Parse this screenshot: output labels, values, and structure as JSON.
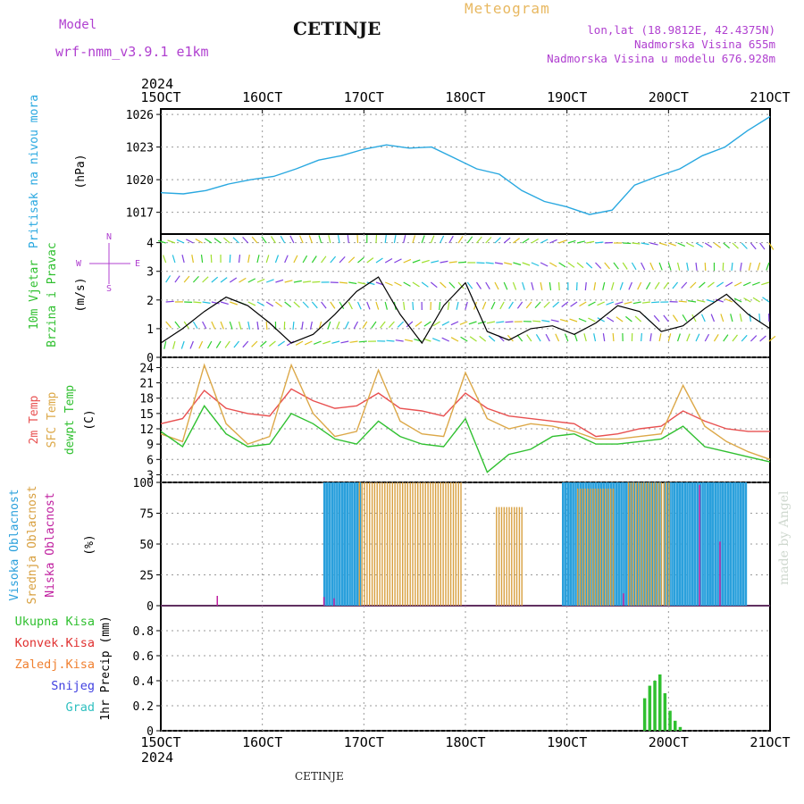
{
  "header": {
    "model_label": "Model",
    "model_name": "wrf-nmm_v3.9.1 e1km",
    "city": "CETINJE",
    "title": "Meteogram",
    "coords": "lon,lat (18.9812E, 42.4375N)",
    "elevation": "Nadmorska Visina 655m",
    "model_elevation": "Nadmorska Visina u modelu 676.928m"
  },
  "footer_city": "CETINJE",
  "credit": "made by Angel",
  "colors": {
    "pressure": "#29a8e0",
    "temp2m": "#e85050",
    "sfc": "#dca848",
    "dewpt": "#30c030",
    "high_cloud": "#2aa0dc",
    "mid_cloud": "#d8a040",
    "low_cloud": "#c020a0",
    "precip_total": "#30c030",
    "precip_conv": "#e03030",
    "precip_frozen": "#f08030",
    "snow": "#4040e0",
    "hail": "#30c0c0"
  },
  "chart_data": {
    "type": "line",
    "time_axis": {
      "year": "2024",
      "tick_labels": [
        "15OCT",
        "16OCT",
        "17OCT",
        "18OCT",
        "19OCT",
        "20OCT",
        "21OCT"
      ]
    },
    "pressure": {
      "ylabel_1": "Pritisak na nivou mora",
      "unit": "(hPa)",
      "ylim": [
        1015,
        1026.5
      ],
      "ticks": [
        1017,
        1020,
        1023,
        1026
      ],
      "values": [
        1018.8,
        1018.7,
        1019.0,
        1019.6,
        1020.0,
        1020.3,
        1021.0,
        1021.8,
        1022.2,
        1022.8,
        1023.2,
        1022.9,
        1023.0,
        1022.0,
        1021.0,
        1020.5,
        1019.0,
        1018.0,
        1017.5,
        1016.8,
        1017.2,
        1019.5,
        1020.3,
        1021.0,
        1022.2,
        1023.0,
        1024.5,
        1025.8
      ]
    },
    "wind": {
      "ylabel_1": "10m Vjetar",
      "ylabel_2": "Brzina i Pravac",
      "unit": "(m/s)",
      "compass": [
        "N",
        "W",
        "E",
        "S"
      ],
      "ylim": [
        0,
        4.3
      ],
      "ticks": [
        0,
        1,
        2,
        3,
        4
      ],
      "values": [
        0.5,
        1.0,
        1.6,
        2.1,
        1.8,
        1.2,
        0.5,
        0.8,
        1.5,
        2.3,
        2.8,
        1.5,
        0.5,
        1.8,
        2.6,
        0.9,
        0.6,
        1.0,
        1.1,
        0.8,
        1.2,
        1.8,
        1.6,
        0.9,
        1.1,
        1.7,
        2.2,
        1.5,
        1.0
      ]
    },
    "temperature": {
      "ylabel_1": "2m Temp",
      "ylabel_2": "SFC Temp",
      "ylabel_3": "dewpt Temp",
      "unit": "(C)",
      "ylim": [
        1.5,
        26
      ],
      "ticks": [
        3,
        6,
        9,
        12,
        15,
        18,
        21,
        24
      ],
      "series": [
        {
          "name": "2m Temp",
          "values": [
            13.0,
            14.0,
            19.5,
            16.0,
            15.0,
            14.5,
            19.8,
            17.5,
            16.0,
            16.5,
            19.0,
            16.0,
            15.5,
            14.5,
            19.0,
            16.0,
            14.5,
            14.0,
            13.5,
            13.0,
            10.5,
            11.0,
            12.0,
            12.5,
            15.5,
            13.5,
            12.0,
            11.5,
            11.5
          ]
        },
        {
          "name": "SFC Temp",
          "values": [
            11.0,
            9.5,
            24.5,
            13.0,
            9.0,
            10.5,
            24.5,
            15.0,
            10.5,
            11.5,
            23.5,
            13.5,
            11.0,
            10.5,
            23.0,
            14.0,
            12.0,
            13.0,
            12.5,
            11.5,
            10.0,
            10.0,
            10.5,
            11.0,
            20.5,
            12.5,
            9.5,
            7.5,
            6.0
          ]
        },
        {
          "name": "dewpt Temp",
          "values": [
            11.5,
            8.5,
            16.5,
            11.0,
            8.5,
            9.0,
            15.0,
            13.0,
            10.0,
            9.0,
            13.5,
            10.5,
            9.0,
            8.5,
            14.0,
            3.5,
            7.0,
            8.0,
            10.5,
            11.0,
            9.0,
            9.0,
            9.5,
            10.0,
            12.5,
            8.5,
            7.5,
            6.5,
            5.5
          ]
        }
      ]
    },
    "clouds": {
      "ylabel_1": "Visoka Oblacnost",
      "ylabel_2": "Srednja Oblacnost",
      "ylabel_3": "Niska Oblacnost",
      "unit": "(%)",
      "ylim": [
        0,
        100
      ],
      "ticks": [
        0,
        25,
        50,
        75,
        100
      ],
      "high_segments": [
        [
          16.6,
          16.95,
          100
        ],
        [
          18.95,
          19.9,
          100
        ],
        [
          19.95,
          20.4,
          100
        ],
        [
          20.4,
          20.75,
          100
        ]
      ],
      "mid_segments": [
        [
          16.95,
          17.95,
          100
        ],
        [
          18.3,
          18.55,
          80
        ],
        [
          19.1,
          19.45,
          95
        ],
        [
          19.6,
          20.0,
          100
        ]
      ],
      "low_spikes": [
        [
          15.55,
          8
        ],
        [
          16.6,
          7
        ],
        [
          16.7,
          6
        ],
        [
          19.55,
          10
        ],
        [
          20.3,
          98
        ],
        [
          20.5,
          52
        ]
      ]
    },
    "precip": {
      "labels": [
        "Ukupna Kisa",
        "Konvek.Kisa",
        "Zaledj.Kisa",
        "Snijeg",
        "Grad"
      ],
      "ylabel": "1hr Precip (mm)",
      "ylim": [
        0,
        1.0
      ],
      "ticks": [
        0,
        0.2,
        0.4,
        0.6,
        0.8
      ],
      "bars": [
        [
          19.75,
          0.26
        ],
        [
          19.8,
          0.36
        ],
        [
          19.85,
          0.4
        ],
        [
          19.9,
          0.45
        ],
        [
          19.95,
          0.3
        ],
        [
          20.0,
          0.16
        ],
        [
          20.05,
          0.08
        ],
        [
          20.1,
          0.03
        ]
      ]
    }
  }
}
